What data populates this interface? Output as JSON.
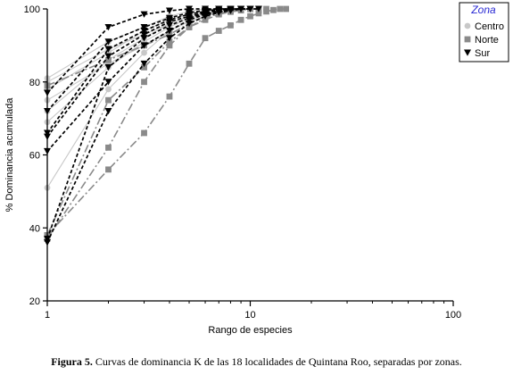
{
  "chart_data": {
    "type": "line",
    "xscale": "log",
    "xlabel": "Rango de especies",
    "ylabel": "% Dominancia acumulada",
    "xlim": [
      1,
      100
    ],
    "ylim": [
      20,
      100
    ],
    "xticks": [
      1,
      10,
      100
    ],
    "yticks": [
      20,
      40,
      60,
      80,
      100
    ],
    "grid": false,
    "legend": {
      "title": "Zona",
      "placement": "top-right",
      "entries": [
        "Centro",
        "Norte",
        "Sur"
      ]
    },
    "colors": {
      "Centro": "#c8c8c8",
      "Norte": "#8a8a8a",
      "Sur": "#000000",
      "legend_title": "#2b2bd4"
    },
    "series": [
      {
        "zone": "Centro",
        "x": [
          1,
          2,
          3,
          4,
          5,
          6,
          7,
          8,
          9,
          10
        ],
        "y": [
          51,
          78,
          88,
          94,
          97,
          98.5,
          99.3,
          99.7,
          100,
          100
        ]
      },
      {
        "zone": "Centro",
        "x": [
          1,
          2,
          3,
          4,
          5,
          6,
          7,
          8,
          9
        ],
        "y": [
          69,
          84,
          91,
          95,
          97.5,
          98.8,
          99.5,
          100,
          100
        ]
      },
      {
        "zone": "Centro",
        "x": [
          1,
          2,
          3,
          4,
          5,
          6,
          7,
          8
        ],
        "y": [
          72,
          86,
          92,
          96,
          98,
          99.3,
          100,
          100
        ]
      },
      {
        "zone": "Centro",
        "x": [
          1,
          2,
          3,
          4,
          5,
          6,
          7,
          8,
          9,
          10,
          11
        ],
        "y": [
          75,
          85,
          90,
          94,
          96.5,
          98,
          99,
          99.5,
          99.8,
          100,
          100
        ]
      },
      {
        "zone": "Centro",
        "x": [
          1,
          2,
          3,
          4,
          5,
          6,
          7,
          8
        ],
        "y": [
          78,
          88,
          94,
          97,
          98.5,
          99.5,
          100,
          100
        ]
      },
      {
        "zone": "Centro",
        "x": [
          1,
          2,
          3,
          4,
          5,
          6,
          7,
          8,
          9,
          10
        ],
        "y": [
          80,
          89,
          93,
          96,
          98,
          99,
          99.5,
          100,
          100,
          100
        ]
      },
      {
        "zone": "Centro",
        "x": [
          1,
          2,
          3,
          4,
          5,
          6,
          7
        ],
        "y": [
          81,
          91,
          95,
          98,
          99.4,
          100,
          100
        ]
      },
      {
        "zone": "Norte",
        "x": [
          1,
          2,
          3,
          4,
          5,
          6,
          7,
          8,
          9,
          10,
          11,
          12,
          13,
          14,
          15
        ],
        "y": [
          38,
          56,
          66,
          76,
          85,
          92,
          94,
          95.5,
          97,
          98,
          98.8,
          99.3,
          99.7,
          100,
          100
        ]
      },
      {
        "zone": "Norte",
        "x": [
          1,
          2,
          3,
          4,
          5,
          6,
          7,
          8,
          9,
          10,
          11,
          12
        ],
        "y": [
          37,
          62,
          80,
          90,
          95,
          97,
          98.5,
          99.2,
          99.6,
          100,
          100,
          100
        ]
      },
      {
        "zone": "Norte",
        "x": [
          1,
          2,
          3,
          4,
          5,
          6,
          7,
          8,
          9,
          10
        ],
        "y": [
          38,
          75,
          84,
          91,
          95,
          97.5,
          98.7,
          99.4,
          100,
          100
        ]
      },
      {
        "zone": "Norte",
        "x": [
          1,
          2,
          3,
          4,
          5,
          6,
          7,
          8
        ],
        "y": [
          79,
          86,
          90,
          93,
          96,
          98,
          99.5,
          100
        ]
      },
      {
        "zone": "Sur",
        "x": [
          1,
          2,
          3,
          4,
          5,
          6,
          7,
          8,
          9
        ],
        "y": [
          36,
          72,
          85,
          92,
          96,
          98,
          99,
          99.5,
          100
        ]
      },
      {
        "zone": "Sur",
        "x": [
          1,
          2,
          3,
          4,
          5,
          6,
          7,
          8,
          9,
          10,
          11
        ],
        "y": [
          61,
          80,
          90,
          94,
          97,
          98.5,
          99.2,
          99.7,
          100,
          100,
          100
        ]
      },
      {
        "zone": "Sur",
        "x": [
          1,
          2,
          3,
          4,
          5,
          6,
          7,
          8,
          9,
          10
        ],
        "y": [
          65,
          87,
          93,
          96.5,
          98,
          99,
          99.6,
          100,
          100,
          100
        ]
      },
      {
        "zone": "Sur",
        "x": [
          1,
          2,
          3,
          4,
          5,
          6,
          7,
          8
        ],
        "y": [
          66,
          89,
          94,
          97,
          98.6,
          99.3,
          100,
          100
        ]
      },
      {
        "zone": "Sur",
        "x": [
          1,
          2,
          3,
          4,
          5,
          6,
          7,
          8,
          9
        ],
        "y": [
          72,
          91,
          95,
          97.5,
          99,
          99.6,
          100,
          100,
          100
        ]
      },
      {
        "zone": "Sur",
        "x": [
          1,
          2,
          3,
          4,
          5,
          6,
          7
        ],
        "y": [
          77,
          95,
          98.5,
          99.5,
          100,
          100,
          100
        ]
      },
      {
        "zone": "Sur",
        "x": [
          1,
          2,
          3,
          4,
          5,
          6,
          7,
          8,
          9,
          10
        ],
        "y": [
          37,
          84,
          92,
          95.5,
          97.5,
          98.8,
          99.4,
          99.8,
          100,
          100
        ]
      }
    ]
  },
  "caption": {
    "label": "Figura 5.",
    "text": " Curvas de dominancia K de las 18 localidades de Quintana Roo, separadas por zonas."
  }
}
